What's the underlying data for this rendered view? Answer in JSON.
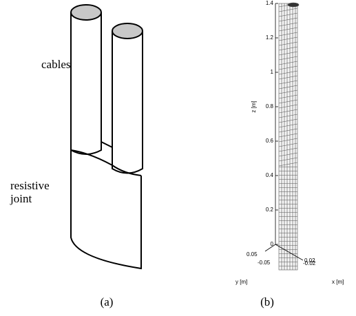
{
  "panel_a": {
    "cables_label": "cables",
    "joint_label": [
      "resistive",
      "joint"
    ],
    "caption": "(a)"
  },
  "panel_b": {
    "z_label": "z [m]",
    "z_ticks": [
      1.4,
      1.2,
      1,
      0.8,
      0.6,
      0.4,
      0.2,
      0
    ],
    "y_label": "y [m]",
    "y_ticks": [
      0.05,
      -0.05
    ],
    "x_label": "x [m]",
    "x_ticks": [
      0.02,
      -0.02
    ],
    "caption": "(b)"
  }
}
